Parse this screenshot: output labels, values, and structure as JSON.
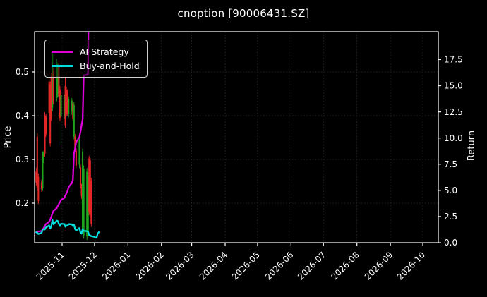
{
  "title": "cnoption [90006431.SZ]",
  "chart_data": {
    "type": "candlestick+line",
    "title": "cnoption [90006431.SZ]",
    "grid": "dotted",
    "background": "#000000",
    "text_color": "#ffffff",
    "grid_color": "#343434",
    "left_axis": {
      "label": "Price",
      "tick_labels": [
        "0.2",
        "0.3",
        "0.4",
        "0.5"
      ],
      "range": [
        0.1097,
        0.5919
      ]
    },
    "right_axis": {
      "label": "Return",
      "tick_labels": [
        "0.0",
        "2.5",
        "5.0",
        "7.5",
        "10.0",
        "12.5",
        "15.0",
        "17.5"
      ],
      "range": [
        0.0,
        20.16
      ]
    },
    "x_axis": {
      "tick_labels": [
        "2025-11",
        "2025-12",
        "2026-01",
        "2026-02",
        "2026-03",
        "2026-04",
        "2026-05",
        "2026-06",
        "2026-07",
        "2026-08",
        "2026-09",
        "2026-10"
      ]
    },
    "legend": [
      {
        "label": "AI Strategy",
        "color": "#dd00dd"
      },
      {
        "label": "Buy-and-Hold",
        "color": "#00dede"
      }
    ],
    "candle_colors": {
      "up": "#1ea31e",
      "down": "#e32626"
    },
    "candles": [
      [
        "2025-10-08",
        0.272,
        0.28,
        0.24,
        0.247
      ],
      [
        "2025-10-09",
        0.352,
        0.36,
        0.228,
        0.235
      ],
      [
        "2025-10-10",
        0.26,
        0.268,
        0.198,
        0.205
      ],
      [
        "2025-10-13",
        0.248,
        0.254,
        0.226,
        0.232
      ],
      [
        "2025-10-14",
        0.234,
        0.318,
        0.228,
        0.312
      ],
      [
        "2025-10-15",
        0.298,
        0.32,
        0.292,
        0.316
      ],
      [
        "2025-10-16",
        0.4,
        0.408,
        0.306,
        0.313
      ],
      [
        "2025-10-17",
        0.398,
        0.404,
        0.352,
        0.358
      ],
      [
        "2025-10-20",
        0.478,
        0.486,
        0.4,
        0.407
      ],
      [
        "2025-10-21",
        0.47,
        0.478,
        0.33,
        0.337
      ],
      [
        "2025-10-22",
        0.49,
        0.497,
        0.388,
        0.394
      ],
      [
        "2025-10-23",
        0.418,
        0.548,
        0.41,
        0.541
      ],
      [
        "2025-10-24",
        0.502,
        0.51,
        0.426,
        0.433
      ],
      [
        "2025-10-27",
        0.44,
        0.53,
        0.433,
        0.522
      ],
      [
        "2025-10-28",
        0.45,
        0.52,
        0.442,
        0.512
      ],
      [
        "2025-10-29",
        0.518,
        0.526,
        0.437,
        0.444
      ],
      [
        "2025-10-30",
        0.46,
        0.468,
        0.388,
        0.395
      ],
      [
        "2025-10-31",
        0.398,
        0.452,
        0.332,
        0.447
      ],
      [
        "2025-11-03",
        0.4,
        0.448,
        0.394,
        0.442
      ],
      [
        "2025-11-04",
        0.468,
        0.488,
        0.372,
        0.378
      ],
      [
        "2025-11-05",
        0.458,
        0.466,
        0.398,
        0.404
      ],
      [
        "2025-11-06",
        0.452,
        0.46,
        0.4,
        0.406
      ],
      [
        "2025-11-07",
        0.404,
        0.444,
        0.396,
        0.438
      ],
      [
        "2025-11-10",
        0.41,
        0.44,
        0.402,
        0.434
      ],
      [
        "2025-11-11",
        0.428,
        0.436,
        0.388,
        0.394
      ],
      [
        "2025-11-12",
        0.352,
        0.432,
        0.346,
        0.424
      ],
      [
        "2025-11-13",
        0.352,
        0.358,
        0.318,
        0.324
      ],
      [
        "2025-11-14",
        0.32,
        0.326,
        0.28,
        0.286
      ],
      [
        "2025-11-17",
        0.288,
        0.352,
        0.28,
        0.345
      ],
      [
        "2025-11-18",
        0.282,
        0.288,
        0.234,
        0.24
      ],
      [
        "2025-11-19",
        0.238,
        0.244,
        0.21,
        0.216
      ],
      [
        "2025-11-20",
        0.142,
        0.325,
        0.134,
        0.318
      ],
      [
        "2025-11-21",
        0.126,
        0.286,
        0.119,
        0.279
      ],
      [
        "2025-11-24",
        0.124,
        0.28,
        0.116,
        0.272
      ],
      [
        "2025-11-25",
        0.13,
        0.27,
        0.122,
        0.262
      ],
      [
        "2025-11-26",
        0.302,
        0.308,
        0.172,
        0.179
      ],
      [
        "2025-11-27",
        0.298,
        0.304,
        0.168,
        0.174
      ],
      [
        "2025-11-28",
        0.252,
        0.258,
        0.146,
        0.153
      ]
    ],
    "series": [
      {
        "name": "AI Strategy",
        "axis": "return",
        "color": "#dd00dd",
        "points": [
          [
            "2025-10-08",
            1.0
          ],
          [
            "2025-10-09",
            1.03
          ],
          [
            "2025-10-10",
            1.07
          ],
          [
            "2025-10-13",
            1.12
          ],
          [
            "2025-10-14",
            1.28
          ],
          [
            "2025-10-15",
            1.42
          ],
          [
            "2025-10-16",
            1.6
          ],
          [
            "2025-10-17",
            1.78
          ],
          [
            "2025-10-20",
            2.0
          ],
          [
            "2025-10-21",
            2.22
          ],
          [
            "2025-10-22",
            2.48
          ],
          [
            "2025-10-23",
            2.8
          ],
          [
            "2025-10-24",
            3.05
          ],
          [
            "2025-10-27",
            3.3
          ],
          [
            "2025-10-28",
            3.5
          ],
          [
            "2025-10-29",
            3.68
          ],
          [
            "2025-10-30",
            3.88
          ],
          [
            "2025-10-31",
            4.08
          ],
          [
            "2025-11-03",
            4.28
          ],
          [
            "2025-11-04",
            4.5
          ],
          [
            "2025-11-05",
            4.72
          ],
          [
            "2025-11-06",
            4.95
          ],
          [
            "2025-11-07",
            5.3
          ],
          [
            "2025-11-10",
            5.7
          ],
          [
            "2025-11-11",
            6.05
          ],
          [
            "2025-11-12",
            8.5
          ],
          [
            "2025-11-13",
            9.0
          ],
          [
            "2025-11-14",
            9.6
          ],
          [
            "2025-11-17",
            10.1
          ],
          [
            "2025-11-18",
            10.6
          ],
          [
            "2025-11-19",
            11.2
          ],
          [
            "2025-11-20",
            11.8
          ],
          [
            "2025-11-21",
            16.0
          ],
          [
            "2025-11-24",
            16.05
          ],
          [
            "2025-11-25",
            16.1
          ],
          [
            "2025-11-26",
            30.0
          ]
        ]
      },
      {
        "name": "Buy-and-Hold",
        "axis": "return",
        "color": "#00dede",
        "points": [
          [
            "2025-10-08",
            1.0
          ],
          [
            "2025-10-09",
            0.95
          ],
          [
            "2025-10-10",
            0.83
          ],
          [
            "2025-10-13",
            0.94
          ],
          [
            "2025-10-14",
            1.26
          ],
          [
            "2025-10-15",
            1.28
          ],
          [
            "2025-10-16",
            1.27
          ],
          [
            "2025-10-17",
            1.45
          ],
          [
            "2025-10-20",
            1.65
          ],
          [
            "2025-10-21",
            1.36
          ],
          [
            "2025-10-22",
            1.6
          ],
          [
            "2025-10-23",
            2.19
          ],
          [
            "2025-10-24",
            1.75
          ],
          [
            "2025-10-27",
            2.11
          ],
          [
            "2025-10-28",
            2.07
          ],
          [
            "2025-10-29",
            1.8
          ],
          [
            "2025-10-30",
            1.6
          ],
          [
            "2025-10-31",
            1.81
          ],
          [
            "2025-11-03",
            1.79
          ],
          [
            "2025-11-04",
            1.53
          ],
          [
            "2025-11-05",
            1.64
          ],
          [
            "2025-11-06",
            1.64
          ],
          [
            "2025-11-07",
            1.77
          ],
          [
            "2025-11-10",
            1.76
          ],
          [
            "2025-11-11",
            1.6
          ],
          [
            "2025-11-12",
            1.72
          ],
          [
            "2025-11-13",
            1.31
          ],
          [
            "2025-11-14",
            1.16
          ],
          [
            "2025-11-17",
            1.4
          ],
          [
            "2025-11-18",
            0.97
          ],
          [
            "2025-11-19",
            0.87
          ],
          [
            "2025-11-20",
            1.29
          ],
          [
            "2025-11-21",
            1.13
          ],
          [
            "2025-11-24",
            1.1
          ],
          [
            "2025-11-25",
            1.06
          ],
          [
            "2025-11-26",
            0.72
          ],
          [
            "2025-11-27",
            0.7
          ],
          [
            "2025-11-28",
            0.62
          ],
          [
            "2025-12-01",
            0.55
          ],
          [
            "2025-12-02",
            0.47
          ],
          [
            "2025-12-03",
            0.52
          ],
          [
            "2025-12-04",
            0.9
          ],
          [
            "2025-12-05",
            1.0
          ]
        ]
      }
    ]
  }
}
